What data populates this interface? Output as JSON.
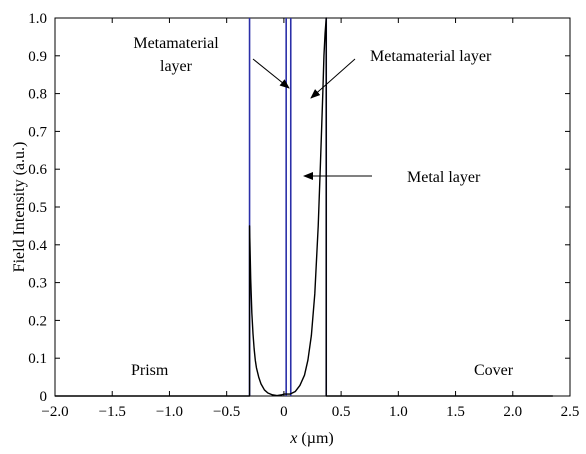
{
  "chart_data": {
    "type": "line",
    "xlabel_var": "x",
    "xlabel_unit": " (µm)",
    "ylabel": "Field Intensity (a.u.)",
    "xlim": [
      -2.0,
      2.5
    ],
    "ylim": [
      0,
      1.0
    ],
    "x_ticks": [
      -2.0,
      -1.5,
      -1.0,
      -0.5,
      0,
      0.5,
      1.0,
      1.5,
      2.0,
      2.5
    ],
    "x_tick_labels": [
      "−2.0",
      "−1.5",
      "−1.0",
      "−0.5",
      "0",
      "0.5",
      "1.0",
      "1.5",
      "2.0",
      "2.5"
    ],
    "y_ticks": [
      0,
      0.1,
      0.2,
      0.3,
      0.4,
      0.5,
      0.6,
      0.7,
      0.8,
      0.9,
      1.0
    ],
    "y_tick_labels": [
      "0",
      "0.1",
      "0.2",
      "0.3",
      "0.4",
      "0.5",
      "0.6",
      "0.7",
      "0.8",
      "0.9",
      "1.0"
    ],
    "grid": false,
    "series": [
      {
        "color": "#000000",
        "x": [
          -2.0,
          -0.3,
          -0.3,
          -0.29,
          -0.28,
          -0.27,
          -0.26,
          -0.25,
          -0.24,
          -0.22,
          -0.2,
          -0.17,
          -0.14,
          -0.1,
          -0.06,
          -0.02,
          0.0,
          0.05,
          0.06,
          0.1,
          0.14,
          0.18,
          0.21,
          0.24,
          0.27,
          0.3,
          0.32,
          0.34,
          0.35,
          0.36,
          0.37,
          0.37,
          2.35
        ],
        "y": [
          0.0,
          0.0,
          0.45,
          0.31,
          0.22,
          0.165,
          0.125,
          0.095,
          0.075,
          0.05,
          0.032,
          0.016,
          0.008,
          0.003,
          0.001,
          0.003,
          0.005,
          0.005,
          0.006,
          0.012,
          0.028,
          0.055,
          0.095,
          0.16,
          0.27,
          0.45,
          0.62,
          0.8,
          0.9,
          0.96,
          1.0,
          0.0,
          0.0
        ]
      }
    ],
    "boundaries": {
      "color": "#2b2fa8",
      "x": [
        -0.3,
        0.02,
        0.06,
        0.37
      ]
    },
    "annotations": [
      {
        "id": "metamaterial-left",
        "lines": [
          "Metamaterial",
          "layer"
        ]
      },
      {
        "id": "metamaterial-right",
        "lines": [
          "Metamaterial layer"
        ]
      },
      {
        "id": "metal",
        "lines": [
          "Metal layer"
        ]
      },
      {
        "id": "prism",
        "lines": [
          "Prism"
        ]
      },
      {
        "id": "cover",
        "lines": [
          "Cover"
        ]
      }
    ]
  }
}
